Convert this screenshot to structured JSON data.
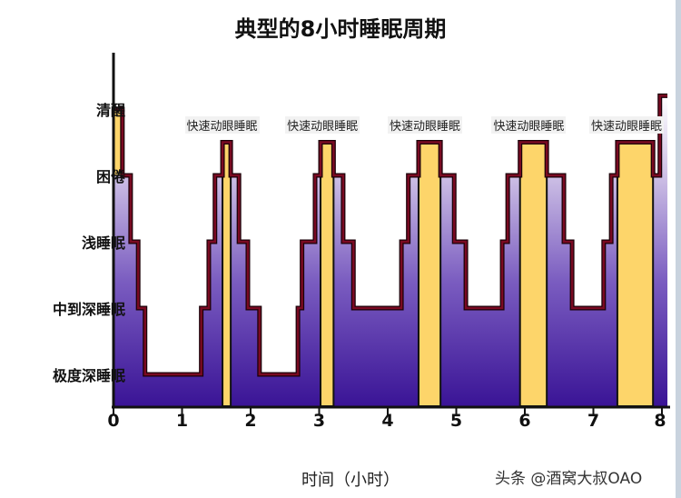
{
  "chart_data": {
    "type": "line",
    "subtype": "step",
    "title": "典型的8小时睡眠周期",
    "xlabel": "时间（小时）",
    "ylabel": "",
    "x_ticks": [
      "0",
      "1",
      "2",
      "3",
      "4",
      "5",
      "6",
      "7",
      "8"
    ],
    "xlim": [
      0,
      8.1
    ],
    "y_levels": [
      {
        "value": 0,
        "label": "极度深睡眠"
      },
      {
        "value": 1,
        "label": "中到深睡眠"
      },
      {
        "value": 2,
        "label": "浅睡眠"
      },
      {
        "value": 3,
        "label": "困倦"
      },
      {
        "value": 4,
        "label": "清醒"
      }
    ],
    "x": [
      0,
      0.13,
      0.25,
      0.36,
      0.46,
      1.28,
      1.39,
      1.48,
      1.59,
      1.71,
      1.83,
      1.96,
      2.13,
      2.69,
      2.75,
      2.94,
      3.02,
      3.21,
      3.35,
      3.5,
      4.2,
      4.3,
      4.45,
      4.77,
      4.97,
      5.14,
      5.67,
      5.75,
      5.93,
      6.32,
      6.57,
      6.69,
      7.15,
      7.26,
      7.35,
      7.87,
      7.97,
      8.08
    ],
    "levels": [
      4,
      3,
      2,
      1,
      0,
      1,
      2,
      3,
      3.5,
      3,
      2,
      1,
      0,
      1,
      2,
      3,
      3.5,
      3,
      2,
      1,
      2,
      3,
      3.5,
      3,
      2,
      1,
      2,
      3,
      3.5,
      3,
      2,
      1,
      2,
      3,
      3.5,
      3,
      4.2
    ],
    "rem_level": 3.5,
    "rem_label": "快速动眼睡眠",
    "annotations": [
      "快速动眼睡眠",
      "快速动眼睡眠",
      "快速动眼睡眠",
      "快速动眼睡眠",
      "快速动眼睡眠"
    ],
    "grid": false,
    "colors": {
      "line": "#7a0a22",
      "rem_fill": "#fdd56a",
      "fill_bottom": "#3a1496",
      "fill_top": "#ffffff"
    }
  },
  "watermark": "头条 @酒窝大叔OAO"
}
